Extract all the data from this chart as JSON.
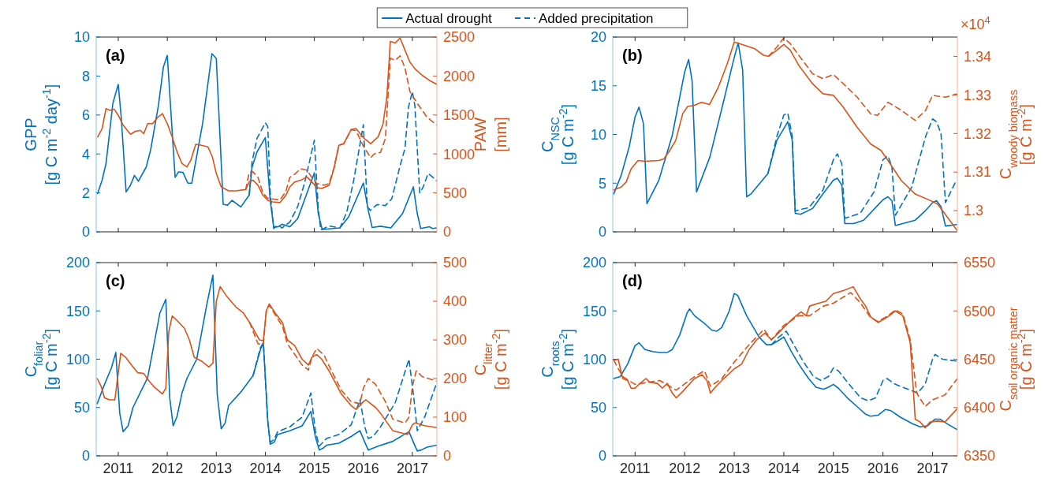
{
  "chart_data": [
    {
      "type": "line",
      "annotations": [
        "(a)"
      ],
      "ylabel": "GPP\n[g C m$^{-2}$ day$^{-1}$]",
      "y2label": "PAW\n[mm]",
      "xlim": [
        2010.55,
        2017.5
      ],
      "xticks": [
        2011,
        2012,
        2013,
        2014,
        2015,
        2016,
        2017
      ],
      "ylim": [
        0,
        10
      ],
      "yticks": [
        0,
        2,
        4,
        6,
        8,
        10
      ],
      "y2lim": [
        0,
        2500
      ],
      "y2ticks": [
        0,
        500,
        1000,
        1500,
        2000,
        2500
      ],
      "tick_labels": "y",
      "legend": "top",
      "grid": false,
      "series": [
        {
          "name": "Actual drought",
          "color": "#0072bd",
          "line_style": "solid",
          "x": [
            2010.58,
            2010.67,
            2010.75,
            2010.89,
            2011.0,
            2011.06,
            2011.16,
            2011.25,
            2011.33,
            2011.41,
            2011.57,
            2011.66,
            2011.82,
            2011.92,
            2012.0,
            2012.16,
            2012.23,
            2012.32,
            2012.42,
            2012.5,
            2012.72,
            2012.91,
            2013.0,
            2013.14,
            2013.23,
            2013.32,
            2013.5,
            2013.67,
            2013.73,
            2013.83,
            2014.0,
            2014.1,
            2014.17,
            2014.26,
            2014.34,
            2014.5,
            2014.66,
            2015.0,
            2015.08,
            2015.16,
            2015.38,
            2015.52,
            2015.7,
            2016.0,
            2016.1,
            2016.18,
            2016.35,
            2016.56,
            2016.8,
            2017.02,
            2017.1,
            2017.17,
            2017.35,
            2017.41,
            2017.5
          ],
          "values": [
            1.97,
            2.65,
            3.5,
            6.6,
            7.57,
            5.9,
            2.05,
            2.4,
            2.9,
            2.6,
            3.33,
            4.2,
            6.5,
            8.46,
            9.06,
            2.8,
            3.08,
            3.05,
            2.5,
            2.5,
            5.55,
            9.15,
            8.9,
            1.42,
            1.37,
            1.62,
            1.28,
            1.88,
            3.33,
            4.1,
            4.84,
            1.62,
            0.26,
            0.26,
            0.39,
            0.26,
            0.68,
            3.03,
            0.94,
            0.12,
            0.17,
            0.2,
            0.77,
            2.51,
            1.11,
            0.22,
            0.29,
            0.2,
            0.94,
            2.31,
            0.94,
            0.17,
            0.26,
            0.17,
            0.2
          ]
        },
        {
          "name": "Added precipitation",
          "color": "#0072bd",
          "line_style": "dashed",
          "x": [
            2013.67,
            2013.73,
            2013.83,
            2014.0,
            2014.05,
            2014.1,
            2014.17,
            2014.26,
            2014.34,
            2014.5,
            2014.66,
            2014.8,
            2015.0,
            2015.08,
            2015.13,
            2015.3,
            2015.52,
            2015.66,
            2015.8,
            2016.0,
            2016.08,
            2016.14,
            2016.28,
            2016.45,
            2016.58,
            2016.75,
            2016.85,
            2016.92,
            2017.0,
            2017.05,
            2017.15,
            2017.22,
            2017.32,
            2017.42,
            2017.5
          ],
          "values": [
            1.88,
            3.6,
            4.8,
            5.6,
            5.4,
            2.0,
            0.17,
            0.35,
            0.2,
            0.5,
            1.3,
            2.5,
            4.7,
            1.2,
            0.1,
            0.3,
            0.2,
            1.0,
            2.6,
            5.5,
            1.3,
            1.1,
            1.4,
            1.35,
            1.7,
            3.4,
            4.3,
            6.4,
            7.2,
            6.5,
            2.0,
            2.3,
            3.0,
            2.8,
            2.6
          ]
        },
        {
          "color": "#d95319",
          "axis": "y2",
          "line_style": "solid",
          "x": [
            2010.58,
            2010.67,
            2010.75,
            2010.83,
            2010.92,
            2011.0,
            2011.1,
            2011.25,
            2011.35,
            2011.45,
            2011.52,
            2011.6,
            2011.7,
            2011.8,
            2011.9,
            2012.0,
            2012.1,
            2012.2,
            2012.3,
            2012.4,
            2012.48,
            2012.58,
            2012.7,
            2012.83,
            2012.92,
            2013.0,
            2013.1,
            2013.25,
            2013.4,
            2013.6,
            2013.67,
            2013.75,
            2013.85,
            2013.95,
            2014.05,
            2014.15,
            2014.3,
            2014.42,
            2014.5,
            2014.6,
            2014.72,
            2014.85,
            2014.95,
            2015.05,
            2015.15,
            2015.3,
            2015.4,
            2015.5,
            2015.6,
            2015.75,
            2015.85,
            2016.0,
            2016.15,
            2016.3,
            2016.4,
            2016.48,
            2016.55,
            2016.65,
            2016.75,
            2016.85,
            2016.95,
            2017.05,
            2017.2,
            2017.35,
            2017.5
          ],
          "values": [
            1218,
            1325,
            1581,
            1560,
            1573,
            1496,
            1368,
            1252,
            1290,
            1303,
            1260,
            1389,
            1389,
            1466,
            1517,
            1389,
            1218,
            1026,
            876,
            833,
            919,
            1124,
            1111,
            1090,
            962,
            748,
            577,
            526,
            526,
            543,
            641,
            662,
            598,
            470,
            406,
            385,
            376,
            470,
            577,
            641,
            662,
            705,
            641,
            568,
            556,
            598,
            812,
            1111,
            1132,
            1312,
            1325,
            1209,
            1132,
            1218,
            1380,
            1731,
            2444,
            2423,
            2487,
            2329,
            2179,
            2094,
            2009,
            1944,
            1893
          ]
        },
        {
          "color": "#d95319",
          "axis": "y2",
          "line_style": "dashed",
          "x": [
            2013.6,
            2013.67,
            2013.75,
            2013.85,
            2013.95,
            2014.05,
            2014.3,
            2014.42,
            2014.5,
            2014.6,
            2014.72,
            2014.85,
            2014.95,
            2015.05,
            2015.2,
            2015.3,
            2015.4,
            2015.5,
            2015.6,
            2015.75,
            2015.85,
            2016.0,
            2016.15,
            2016.22,
            2016.35,
            2016.45,
            2016.55,
            2016.65,
            2016.75,
            2016.85,
            2016.95,
            2017.1,
            2017.3,
            2017.5
          ],
          "values": [
            543,
            760,
            770,
            700,
            500,
            430,
            410,
            520,
            700,
            740,
            810,
            790,
            700,
            620,
            600,
            620,
            820,
            1111,
            1132,
            1312,
            1300,
            1100,
            950,
            1000,
            1020,
            1200,
            2230,
            2200,
            2260,
            2100,
            1800,
            1650,
            1470,
            1370
          ]
        }
      ]
    },
    {
      "type": "line",
      "annotations": [
        "(b)",
        "×10$^{4}$"
      ],
      "ylabel": "C$_{NSC}$\n[g C m$^{-2}$]",
      "y2label": "C$_{woody biomass}$\n[g C m$^{-2}$]",
      "xlim": [
        2010.55,
        2017.5
      ],
      "xticks": [
        2011,
        2012,
        2013,
        2014,
        2015,
        2016,
        2017
      ],
      "ylim": [
        0,
        20
      ],
      "yticks": [
        0,
        5,
        10,
        15,
        20
      ],
      "y2lim": [
        1.2945,
        1.345
      ],
      "y2ticks": [
        1.3,
        1.31,
        1.32,
        1.33,
        1.34
      ],
      "tick_labels": "y",
      "grid": false,
      "series": [
        {
          "color": "#0072bd",
          "line_style": "solid",
          "x": [
            2010.57,
            2010.72,
            2010.88,
            2011.0,
            2011.08,
            2011.17,
            2011.24,
            2011.48,
            2011.75,
            2012.0,
            2012.08,
            2012.15,
            2012.24,
            2012.51,
            2012.79,
            2013.0,
            2013.08,
            2013.17,
            2013.25,
            2013.34,
            2013.68,
            2013.86,
            2014.0,
            2014.08,
            2014.17,
            2014.23,
            2014.34,
            2014.58,
            2014.79,
            2015.0,
            2015.08,
            2015.17,
            2015.23,
            2015.41,
            2015.61,
            2015.89,
            2016.0,
            2016.1,
            2016.18,
            2016.25,
            2016.65,
            2016.86,
            2017.0,
            2017.08,
            2017.17,
            2017.26,
            2017.48
          ],
          "values": [
            3.9,
            5.8,
            8.7,
            11.8,
            12.8,
            11.1,
            2.9,
            5.3,
            9.9,
            16.4,
            17.7,
            15.5,
            4.1,
            7.7,
            13.5,
            17.9,
            19.4,
            16.6,
            3.6,
            3.9,
            6.0,
            9.4,
            10.6,
            11.3,
            9.4,
            1.9,
            1.8,
            2.4,
            3.9,
            5.3,
            5.5,
            4.8,
            0.85,
            0.85,
            1.2,
            2.7,
            3.3,
            3.6,
            3.2,
            0.65,
            1.2,
            2.2,
            3.0,
            3.2,
            2.6,
            0.6,
            0.75
          ]
        },
        {
          "color": "#0072bd",
          "line_style": "dashed",
          "x": [
            2013.68,
            2013.86,
            2014.0,
            2014.08,
            2014.17,
            2014.23,
            2014.51,
            2014.79,
            2015.0,
            2015.08,
            2015.17,
            2015.23,
            2015.54,
            2015.82,
            2016.0,
            2016.1,
            2016.18,
            2016.25,
            2016.58,
            2016.86,
            2017.0,
            2017.08,
            2017.17,
            2017.26,
            2017.48
          ],
          "values": [
            6.0,
            9.8,
            12.0,
            12.2,
            9.8,
            2.15,
            2.5,
            4.3,
            7.4,
            8.0,
            7.0,
            1.4,
            1.9,
            4.1,
            7.4,
            7.8,
            6.7,
            1.7,
            4.6,
            9.8,
            11.6,
            11.3,
            10.1,
            3.0,
            5.3
          ]
        },
        {
          "color": "#d95319",
          "axis": "y2",
          "line_style": "solid",
          "x": [
            2010.57,
            2010.72,
            2010.82,
            2010.92,
            2011.06,
            2011.2,
            2011.48,
            2011.58,
            2011.68,
            2011.82,
            2011.96,
            2012.06,
            2012.2,
            2012.34,
            2012.5,
            2012.68,
            2012.86,
            2013.0,
            2013.2,
            2013.41,
            2013.59,
            2013.69,
            2013.86,
            2014.0,
            2014.13,
            2014.3,
            2014.58,
            2014.79,
            2015.0,
            2015.2,
            2015.48,
            2015.75,
            2015.96,
            2016.1,
            2016.37,
            2016.65,
            2016.96,
            2017.1,
            2017.3,
            2017.5
          ],
          "values": [
            1.3054,
            1.3061,
            1.3074,
            1.3108,
            1.313,
            1.3128,
            1.313,
            1.3134,
            1.3152,
            1.3182,
            1.3251,
            1.327,
            1.3273,
            1.3281,
            1.3275,
            1.332,
            1.3381,
            1.3437,
            1.3429,
            1.342,
            1.3403,
            1.34,
            1.3416,
            1.3431,
            1.3416,
            1.3377,
            1.3329,
            1.3303,
            1.3299,
            1.3268,
            1.3216,
            1.3173,
            1.3156,
            1.313,
            1.3078,
            1.3043,
            1.3026,
            1.3017,
            1.2983,
            1.2948
          ]
        },
        {
          "color": "#d95319",
          "axis": "y2",
          "line_style": "dashed",
          "x": [
            2013.69,
            2013.86,
            2014.0,
            2014.13,
            2014.3,
            2014.58,
            2014.79,
            2015.0,
            2015.2,
            2015.48,
            2015.75,
            2015.89,
            2016.1,
            2016.37,
            2016.65,
            2016.86,
            2017.0,
            2017.26,
            2017.5
          ],
          "values": [
            1.34,
            1.3424,
            1.3448,
            1.3433,
            1.3403,
            1.3355,
            1.3342,
            1.3353,
            1.3329,
            1.3294,
            1.3251,
            1.3247,
            1.3281,
            1.326,
            1.3234,
            1.326,
            1.3299,
            1.3294,
            1.3303
          ]
        }
      ]
    },
    {
      "type": "line",
      "annotations": [
        "(c)"
      ],
      "ylabel": "C$_{foliar}$\n[g C m$^{-2}$]",
      "y2label": "C$_{litter}$\n[g C m$^{-2}$]",
      "xlim": [
        2010.55,
        2017.5
      ],
      "xticks": [
        2011,
        2012,
        2013,
        2014,
        2015,
        2016,
        2017
      ],
      "ylim": [
        0,
        200
      ],
      "yticks": [
        0,
        50,
        100,
        150,
        200
      ],
      "y2lim": [
        0,
        500
      ],
      "y2ticks": [
        0,
        100,
        200,
        300,
        400,
        500
      ],
      "grid": false,
      "series": [
        {
          "color": "#0072bd",
          "line_style": "solid",
          "x": [
            2010.57,
            2010.72,
            2010.86,
            2010.95,
            2011.03,
            2011.1,
            2011.2,
            2011.3,
            2011.6,
            2011.85,
            2011.97,
            2012.05,
            2012.12,
            2012.2,
            2012.3,
            2012.4,
            2012.6,
            2012.8,
            2012.93,
            2013.02,
            2013.1,
            2013.18,
            2013.25,
            2013.5,
            2013.75,
            2013.9,
            2013.96,
            2014.05,
            2014.1,
            2014.18,
            2014.25,
            2014.5,
            2014.75,
            2014.93,
            2015.02,
            2015.1,
            2015.18,
            2015.25,
            2015.5,
            2015.75,
            2015.93,
            2016.03,
            2016.1,
            2016.2,
            2016.3,
            2016.6,
            2016.93,
            2017.03,
            2017.1,
            2017.18,
            2017.3,
            2017.5
          ],
          "values": [
            54,
            74,
            91,
            107,
            44,
            25,
            31,
            50,
            81,
            148,
            162,
            60,
            31,
            41,
            65,
            80,
            100,
            155,
            187,
            63,
            28,
            34,
            52,
            66,
            83,
            110,
            117,
            36,
            12,
            14,
            22,
            26,
            31,
            46,
            20,
            6,
            8,
            11,
            13,
            20,
            26,
            14,
            6,
            8,
            10,
            15,
            25,
            13,
            5,
            6,
            9,
            11
          ]
        },
        {
          "color": "#0072bd",
          "line_style": "dashed",
          "x": [
            2013.75,
            2013.9,
            2013.96,
            2014.05,
            2014.1,
            2014.18,
            2014.25,
            2014.5,
            2014.75,
            2014.93,
            2015.02,
            2015.1,
            2015.25,
            2015.5,
            2015.75,
            2015.93,
            2016.03,
            2016.1,
            2016.2,
            2016.35,
            2016.65,
            2016.93,
            2017.03,
            2017.1,
            2017.25,
            2017.5
          ],
          "values": [
            83,
            112,
            117,
            36,
            14,
            17,
            25,
            30,
            40,
            65,
            26,
            10,
            18,
            22,
            32,
            58,
            30,
            18,
            20,
            30,
            55,
            100,
            60,
            26,
            40,
            76
          ]
        },
        {
          "color": "#d95319",
          "axis": "y2",
          "line_style": "solid",
          "x": [
            2010.57,
            2010.65,
            2010.72,
            2010.82,
            2010.93,
            2011.05,
            2011.15,
            2011.3,
            2011.4,
            2011.52,
            2011.62,
            2011.72,
            2011.9,
            2011.97,
            2012.03,
            2012.1,
            2012.2,
            2012.35,
            2012.45,
            2012.55,
            2012.7,
            2012.85,
            2012.93,
            2013.0,
            2013.08,
            2013.2,
            2013.4,
            2013.55,
            2013.68,
            2013.88,
            2013.96,
            2014.02,
            2014.08,
            2014.2,
            2014.35,
            2014.45,
            2014.6,
            2014.75,
            2014.88,
            2014.95,
            2015.05,
            2015.15,
            2015.3,
            2015.55,
            2015.75,
            2015.85,
            2016.0,
            2016.05,
            2016.25,
            2016.35,
            2016.6,
            2016.9,
            2017.0,
            2017.05,
            2017.25,
            2017.5
          ],
          "values": [
            200,
            180,
            150,
            145,
            145,
            265,
            255,
            230,
            215,
            213,
            195,
            180,
            160,
            175,
            320,
            362,
            350,
            330,
            300,
            255,
            245,
            230,
            240,
            400,
            438,
            415,
            385,
            370,
            345,
            300,
            298,
            375,
            393,
            370,
            345,
            300,
            285,
            250,
            235,
            255,
            262,
            250,
            220,
            160,
            130,
            120,
            140,
            145,
            125,
            110,
            65,
            55,
            80,
            85,
            78,
            73
          ]
        },
        {
          "color": "#d95319",
          "axis": "y2",
          "line_style": "dashed",
          "x": [
            2013.68,
            2013.85,
            2013.96,
            2014.02,
            2014.08,
            2014.35,
            2014.45,
            2014.75,
            2014.88,
            2014.95,
            2015.05,
            2015.2,
            2015.35,
            2015.55,
            2015.75,
            2015.93,
            2016.0,
            2016.1,
            2016.25,
            2016.45,
            2016.6,
            2016.85,
            2016.93,
            2017.0,
            2017.08,
            2017.2,
            2017.5
          ],
          "values": [
            345,
            290,
            288,
            375,
            390,
            335,
            290,
            235,
            222,
            255,
            278,
            260,
            220,
            170,
            140,
            135,
            175,
            200,
            185,
            140,
            95,
            85,
            100,
            180,
            220,
            205,
            193
          ]
        }
      ]
    },
    {
      "type": "line",
      "annotations": [
        "(d)"
      ],
      "ylabel": "C$_{roots}$\n[g C m$^{-2}$]",
      "y2label": "C$_{soil organic matter}$\n[g C m$^{-2}$]",
      "xlim": [
        2010.55,
        2017.5
      ],
      "xticks": [
        2011,
        2012,
        2013,
        2014,
        2015,
        2016,
        2017
      ],
      "ylim": [
        0,
        200
      ],
      "yticks": [
        0,
        50,
        100,
        150,
        200
      ],
      "y2lim": [
        6350,
        6550
      ],
      "y2ticks": [
        6350,
        6400,
        6450,
        6500,
        6550
      ],
      "grid": false,
      "series": [
        {
          "color": "#0072bd",
          "line_style": "solid",
          "x": [
            2010.57,
            2010.7,
            2010.85,
            2011.0,
            2011.08,
            2011.2,
            2011.35,
            2011.5,
            2011.65,
            2011.75,
            2011.9,
            2012.05,
            2012.1,
            2012.2,
            2012.4,
            2012.55,
            2012.65,
            2012.75,
            2012.9,
            2013.0,
            2013.07,
            2013.25,
            2013.5,
            2013.65,
            2013.75,
            2013.88,
            2014.0,
            2014.15,
            2014.3,
            2014.5,
            2014.65,
            2014.8,
            2014.9,
            2015.0,
            2015.1,
            2015.3,
            2015.5,
            2015.65,
            2015.75,
            2015.9,
            2016.05,
            2016.15,
            2016.35,
            2016.6,
            2016.75,
            2016.9,
            2017.05,
            2017.15,
            2017.3,
            2017.5
          ],
          "values": [
            80,
            82,
            95,
            114,
            117,
            110,
            108,
            107,
            107,
            110,
            125,
            148,
            152,
            145,
            137,
            130,
            129,
            133,
            150,
            168,
            166,
            145,
            123,
            115,
            115,
            119,
            123,
            108,
            95,
            80,
            71,
            69,
            71,
            74,
            70,
            59,
            50,
            43,
            41,
            42,
            48,
            47,
            40,
            33,
            30,
            31,
            38,
            38,
            33,
            27
          ]
        },
        {
          "color": "#0072bd",
          "line_style": "dashed",
          "x": [
            2013.75,
            2013.9,
            2014.05,
            2014.2,
            2014.4,
            2014.6,
            2014.75,
            2014.9,
            2015.0,
            2015.1,
            2015.35,
            2015.55,
            2015.7,
            2015.85,
            2016.0,
            2016.08,
            2016.25,
            2016.5,
            2016.7,
            2016.85,
            2017.0,
            2017.05,
            2017.2,
            2017.5
          ],
          "values": [
            115,
            123,
            129,
            115,
            97,
            82,
            78,
            82,
            91,
            88,
            72,
            60,
            57,
            60,
            78,
            80,
            74,
            69,
            65,
            74,
            100,
            105,
            100,
            98
          ]
        },
        {
          "color": "#d95319",
          "axis": "y2",
          "line_style": "solid",
          "x": [
            2010.57,
            2010.66,
            2010.75,
            2010.85,
            2010.92,
            2011.0,
            2011.1,
            2011.22,
            2011.3,
            2011.45,
            2011.55,
            2011.65,
            2011.75,
            2011.83,
            2011.95,
            2012.2,
            2012.35,
            2012.45,
            2012.52,
            2012.6,
            2012.75,
            2013.0,
            2013.15,
            2013.3,
            2013.45,
            2013.62,
            2013.75,
            2013.87,
            2014.0,
            2014.2,
            2014.35,
            2014.45,
            2014.52,
            2014.7,
            2014.85,
            2015.0,
            2015.2,
            2015.4,
            2015.55,
            2015.65,
            2015.75,
            2015.9,
            2016.1,
            2016.25,
            2016.4,
            2016.55,
            2016.65,
            2016.75,
            2016.85,
            2016.95,
            2017.1,
            2017.25,
            2017.5
          ],
          "values": [
            6449,
            6450,
            6430,
            6428,
            6420,
            6420,
            6425,
            6430,
            6426,
            6425,
            6420,
            6425,
            6415,
            6410,
            6416,
            6430,
            6434,
            6428,
            6415,
            6420,
            6428,
            6440,
            6445,
            6460,
            6470,
            6477,
            6470,
            6476,
            6483,
            6493,
            6499,
            6495,
            6505,
            6508,
            6510,
            6518,
            6521,
            6525,
            6512,
            6505,
            6494,
            6488,
            6494,
            6500,
            6495,
            6467,
            6388,
            6385,
            6379,
            6385,
            6386,
            6385,
            6399
          ]
        },
        {
          "color": "#d95319",
          "axis": "y2",
          "line_style": "dashed",
          "x": [
            2010.57,
            2010.75,
            2011.0,
            2011.5,
            2011.83,
            2012.2,
            2012.4,
            2012.52,
            2012.75,
            2013.0,
            2013.3,
            2013.6,
            2013.75,
            2014.0,
            2014.3,
            2014.52,
            2014.8,
            2015.0,
            2015.35,
            2015.55,
            2015.75,
            2015.9,
            2016.1,
            2016.25,
            2016.4,
            2016.55,
            2016.68,
            2016.85,
            2017.0,
            2017.25,
            2017.5
          ],
          "values": [
            6449,
            6432,
            6424,
            6428,
            6418,
            6432,
            6438,
            6422,
            6430,
            6447,
            6465,
            6481,
            6470,
            6485,
            6495,
            6495,
            6505,
            6508,
            6519,
            6508,
            6493,
            6489,
            6495,
            6501,
            6497,
            6470,
            6415,
            6401,
            6408,
            6413,
            6430
          ]
        }
      ]
    }
  ]
}
